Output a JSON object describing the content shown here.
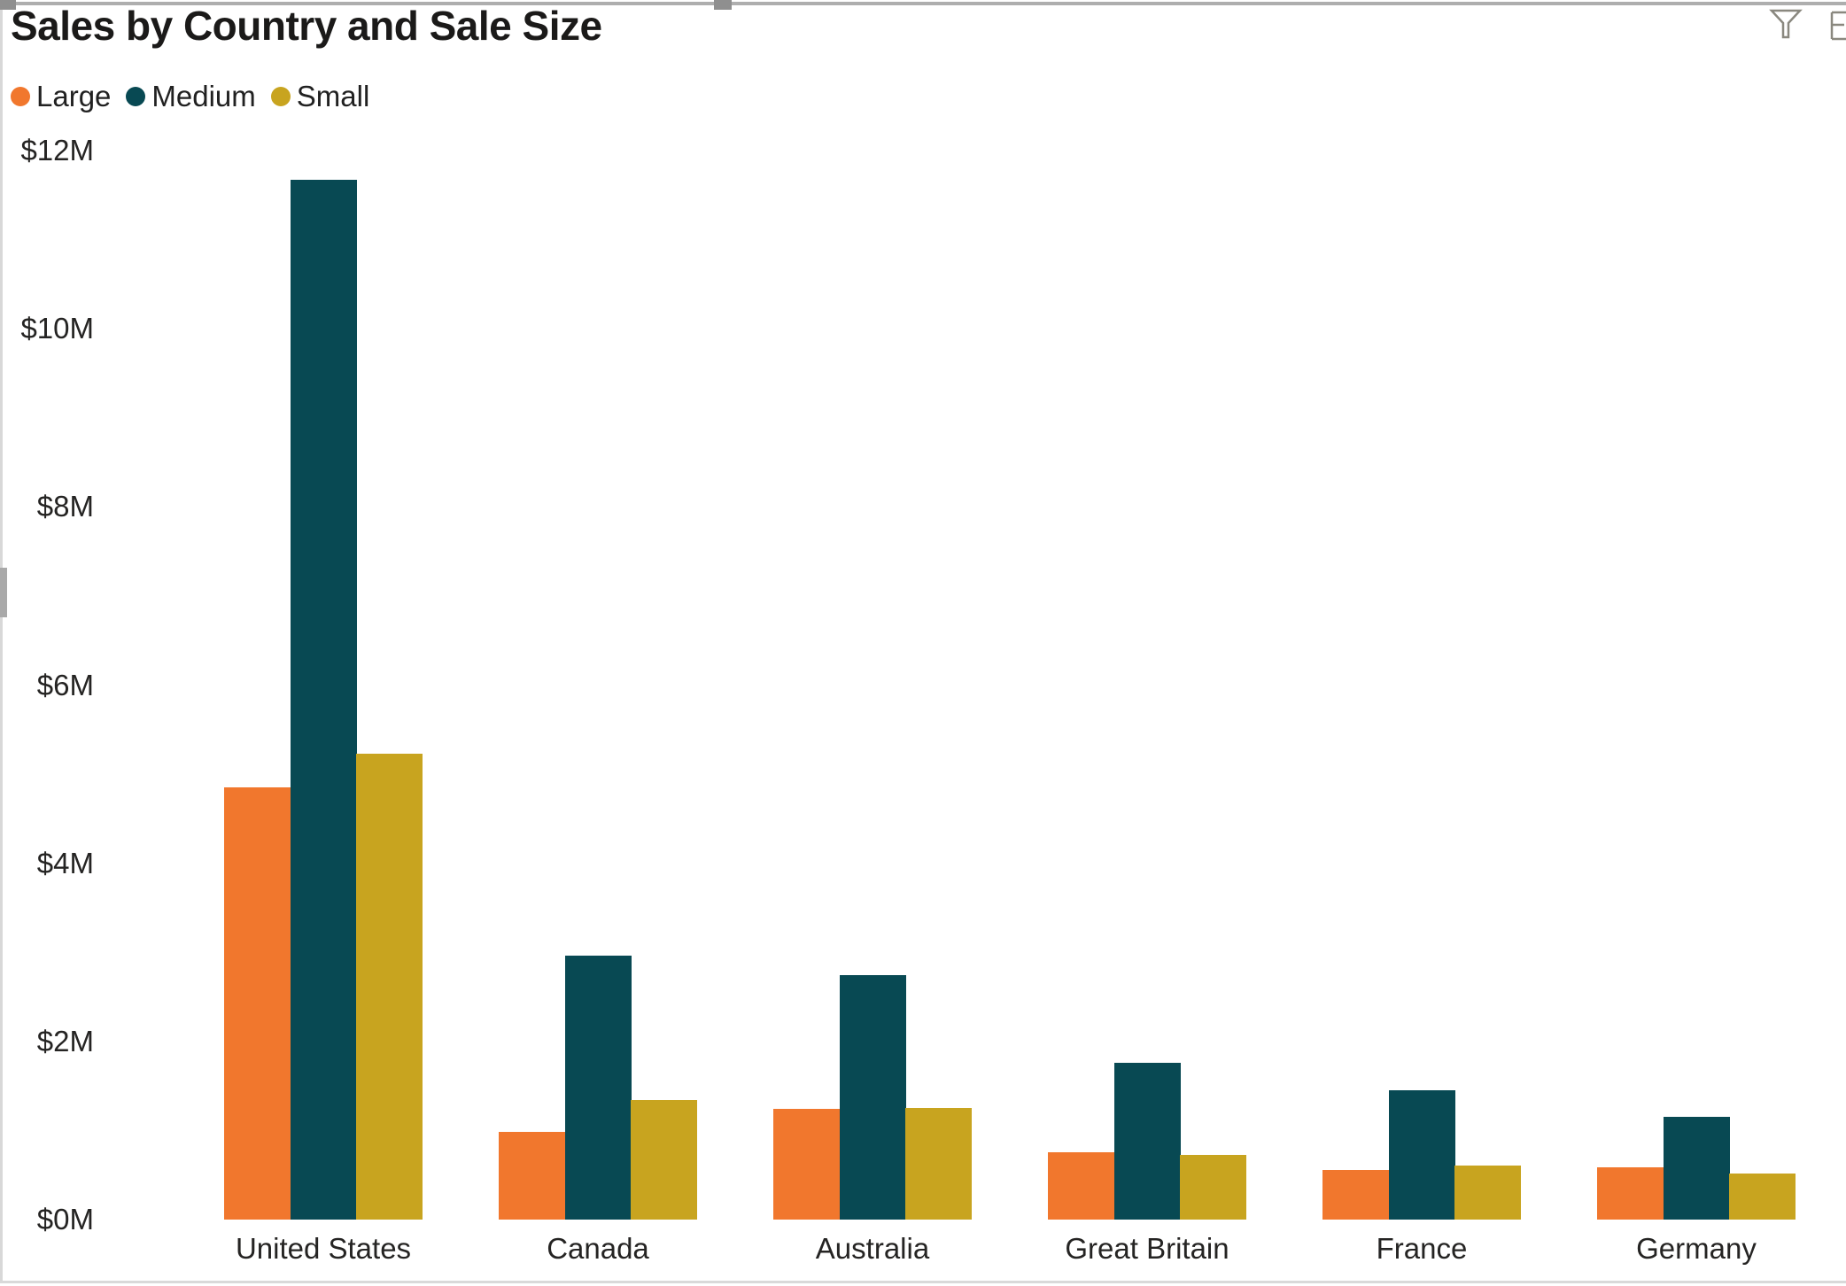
{
  "title": "Sales by Country and Sale Size",
  "toolbar": {
    "icons": [
      {
        "name": "filter-funnel-icon"
      },
      {
        "name": "options-icon-partial"
      }
    ],
    "icon_color": "#8a887f"
  },
  "selection_chrome": {
    "border_color": "#aeaeae",
    "handle_color": "#8f8f8f"
  },
  "chart_data": {
    "type": "bar",
    "title": "Sales by Country and Sale Size",
    "categories": [
      "United States",
      "Canada",
      "Australia",
      "Great Britain",
      "France",
      "Germany"
    ],
    "series": [
      {
        "name": "Large",
        "color": "#F1772D",
        "values": [
          4.85,
          0.98,
          1.24,
          0.76,
          0.56,
          0.59
        ]
      },
      {
        "name": "Medium",
        "color": "#084953",
        "values": [
          11.67,
          2.96,
          2.74,
          1.76,
          1.45,
          1.15
        ]
      },
      {
        "name": "Small",
        "color": "#C8A41F",
        "values": [
          5.23,
          1.34,
          1.25,
          0.73,
          0.61,
          0.52
        ]
      }
    ],
    "y_axis": {
      "min": 0,
      "max": 12,
      "tick_step": 2,
      "tick_labels": [
        "$0M",
        "$2M",
        "$4M",
        "$6M",
        "$8M",
        "$10M",
        "$12M"
      ],
      "unit": "millions USD"
    },
    "x_axis_label": "",
    "y_axis_label": "",
    "legend": {
      "position": "top-left",
      "entries": [
        "Large",
        "Medium",
        "Small"
      ]
    },
    "grid": false,
    "background": "#ffffff"
  }
}
